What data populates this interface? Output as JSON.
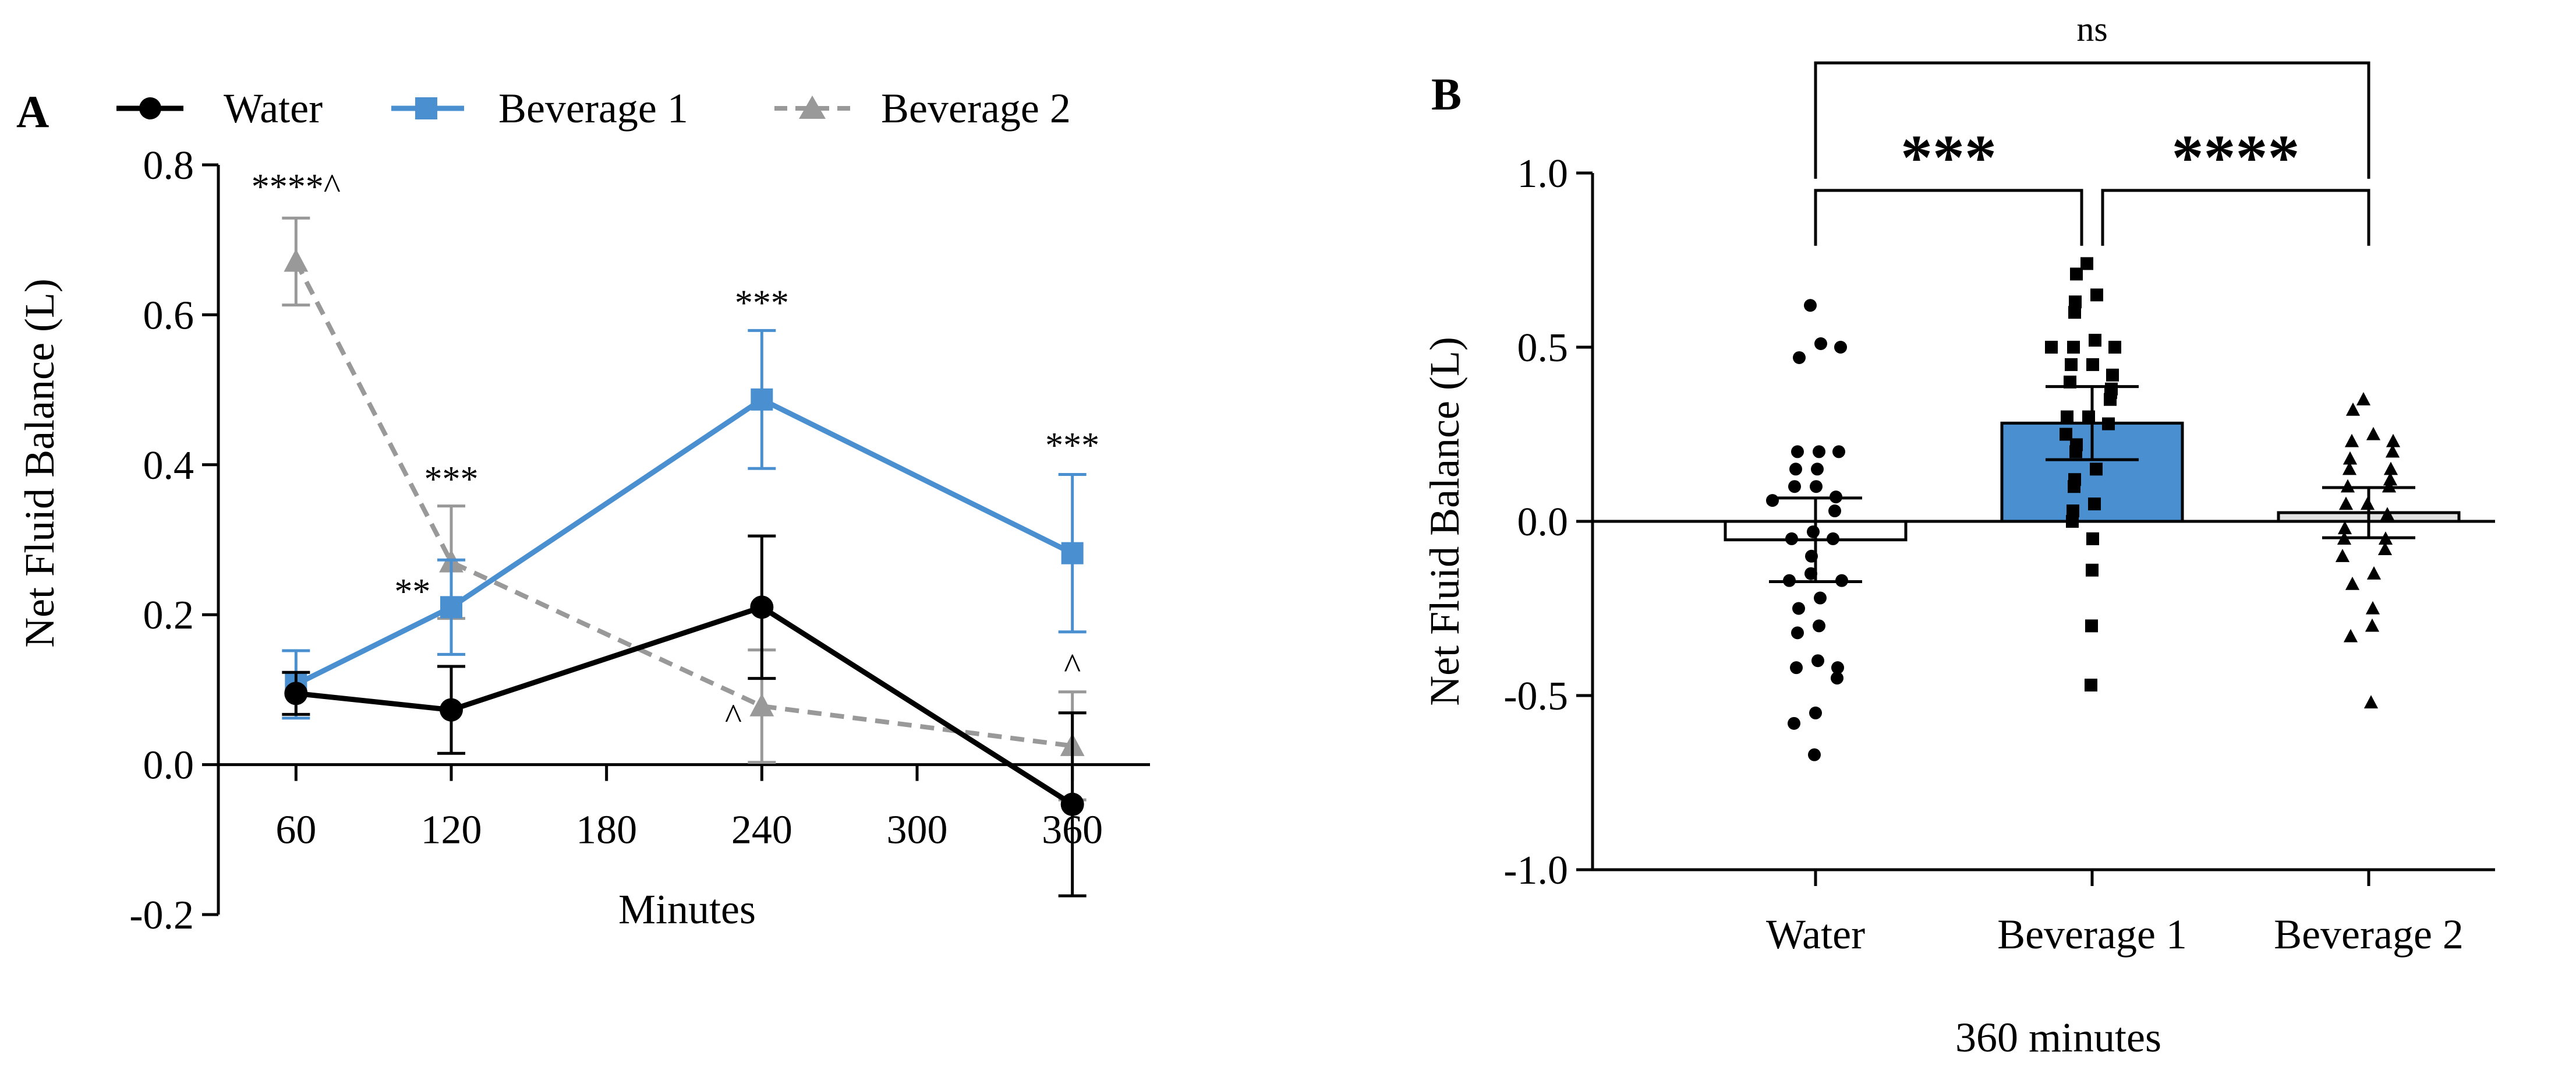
{
  "chart_data": [
    {
      "panel": "A",
      "type": "line",
      "xlabel": "Minutes",
      "ylabel": "Net Fluid Balance (L)",
      "xlim": [
        30,
        390
      ],
      "ylim": [
        -0.2,
        0.8
      ],
      "xticks": [
        60,
        120,
        180,
        240,
        300,
        360
      ],
      "xtick_labels": [
        "60",
        "120",
        "180",
        "240",
        "300",
        "360"
      ],
      "yticks": [
        -0.2,
        0.0,
        0.2,
        0.4,
        0.6,
        0.8
      ],
      "ytick_labels": [
        "-0.2",
        "0.0",
        "0.2",
        "0.4",
        "0.6",
        "0.8"
      ],
      "legend": {
        "placement": "top"
      },
      "series": [
        {
          "name": "Water",
          "color": "#000000",
          "marker": "circle",
          "dash": false,
          "x": [
            60,
            120,
            240,
            360
          ],
          "y": [
            0.095,
            0.073,
            0.21,
            -0.053
          ],
          "err": [
            0.028,
            0.058,
            0.095,
            0.122
          ]
        },
        {
          "name": "Beverage 1",
          "color": "#4a90d0",
          "marker": "square",
          "dash": false,
          "x": [
            60,
            120,
            240,
            360
          ],
          "y": [
            0.107,
            0.21,
            0.487,
            0.282
          ],
          "err": [
            0.045,
            0.063,
            0.092,
            0.105
          ]
        },
        {
          "name": "Beverage 2",
          "color": "#999999",
          "marker": "triangle",
          "dash": true,
          "x": [
            60,
            120,
            240,
            360
          ],
          "y": [
            0.671,
            0.27,
            0.078,
            0.025
          ],
          "err": [
            0.058,
            0.075,
            0.075,
            0.072
          ]
        }
      ],
      "annotations": [
        {
          "text": "****^",
          "x": 60,
          "y": 0.755
        },
        {
          "text": "***",
          "x": 120,
          "y": 0.365
        },
        {
          "text": "**",
          "x": 105,
          "y": 0.215
        },
        {
          "text": "***",
          "x": 240,
          "y": 0.6
        },
        {
          "text": "^",
          "x": 229,
          "y": 0.048
        },
        {
          "text": "***",
          "x": 360,
          "y": 0.41
        },
        {
          "text": "^",
          "x": 360,
          "y": 0.115
        }
      ]
    },
    {
      "panel": "B",
      "type": "bar",
      "title": "",
      "xlabel": "360 minutes",
      "ylabel": "Net Fluid Balance (L)",
      "ylim": [
        -1.0,
        1.0
      ],
      "yticks": [
        -1.0,
        -0.5,
        0.0,
        0.5,
        1.0
      ],
      "ytick_labels": [
        "-1.0",
        "-0.5",
        "0.0",
        "0.5",
        "1.0"
      ],
      "categories": [
        "Water",
        "Beverage 1",
        "Beverage 2"
      ],
      "values": [
        -0.053,
        0.282,
        0.025
      ],
      "errors": [
        0.12,
        0.105,
        0.072
      ],
      "colors": [
        "#ffffff",
        "#4a90d0",
        "#e3e3e3"
      ],
      "markers": [
        "circle",
        "square",
        "triangle"
      ],
      "points": [
        [
          0.62,
          0.51,
          0.47,
          0.5,
          0.2,
          0.2,
          0.2,
          0.15,
          0.15,
          0.1,
          0.1,
          0.07,
          0.06,
          0.03,
          -0.03,
          -0.05,
          -0.05,
          -0.1,
          -0.15,
          -0.17,
          -0.17,
          -0.22,
          -0.25,
          -0.3,
          -0.32,
          -0.4,
          -0.42,
          -0.42,
          -0.45,
          -0.55,
          -0.58,
          -0.67
        ],
        [
          0.74,
          0.71,
          0.65,
          0.63,
          0.6,
          0.52,
          0.5,
          0.5,
          0.5,
          0.45,
          0.45,
          0.42,
          0.4,
          0.38,
          0.37,
          0.35,
          0.3,
          0.3,
          0.28,
          0.25,
          0.22,
          0.2,
          0.15,
          0.12,
          0.1,
          0.05,
          0.03,
          0.0,
          -0.05,
          -0.14,
          -0.3,
          -0.47
        ],
        [
          0.35,
          0.32,
          0.25,
          0.23,
          0.23,
          0.2,
          0.18,
          0.15,
          0.15,
          0.12,
          0.1,
          0.1,
          0.05,
          0.05,
          0.02,
          -0.02,
          -0.05,
          -0.05,
          -0.08,
          -0.1,
          -0.15,
          -0.18,
          -0.25,
          -0.3,
          -0.33,
          -0.52
        ]
      ],
      "comparisons": [
        {
          "from": 1,
          "to": 2,
          "text": "***"
        },
        {
          "from": 2,
          "to": 3,
          "text": "****"
        },
        {
          "from": 1,
          "to": 3,
          "text": "ns"
        }
      ]
    }
  ]
}
